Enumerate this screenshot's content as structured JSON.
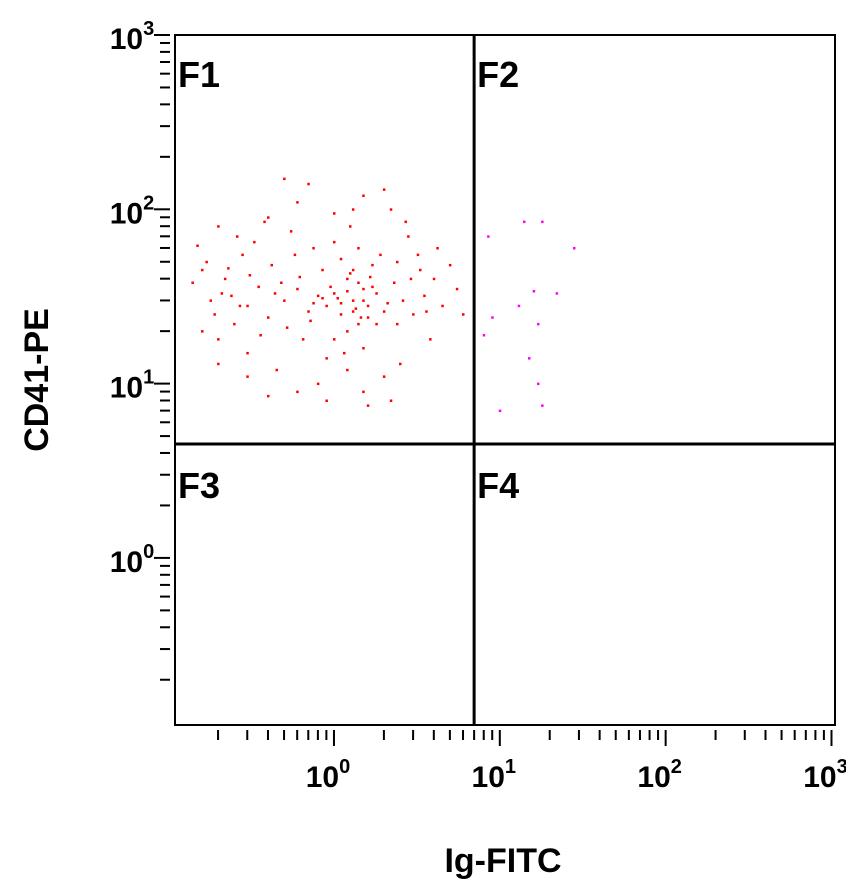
{
  "chart_data": {
    "type": "scatter",
    "xlabel": "Ig-FITC",
    "ylabel": "CD41-PE",
    "x_scale": "log",
    "y_scale": "log",
    "xlim": [
      0.11,
      1050
    ],
    "ylim": [
      0.11,
      1000
    ],
    "x_ticks": [
      {
        "base": "10",
        "exp": "0",
        "value": 1
      },
      {
        "base": "10",
        "exp": "1",
        "value": 10
      },
      {
        "base": "10",
        "exp": "2",
        "value": 100
      },
      {
        "base": "10",
        "exp": "3",
        "value": 1000
      }
    ],
    "y_ticks": [
      {
        "base": "10",
        "exp": "0",
        "value": 1
      },
      {
        "base": "10",
        "exp": "1",
        "value": 10
      },
      {
        "base": "10",
        "exp": "2",
        "value": 100
      },
      {
        "base": "10",
        "exp": "3",
        "value": 1000
      }
    ],
    "quadrant_gates": {
      "x": 7.0,
      "y": 4.5
    },
    "quadrants": [
      "F1",
      "F2",
      "F3",
      "F4"
    ],
    "grid": false,
    "series": [
      {
        "color": "#ff0000",
        "points": [
          [
            1.3,
            30
          ],
          [
            1.1,
            25
          ],
          [
            1.5,
            35
          ],
          [
            0.9,
            28
          ],
          [
            1.2,
            40
          ],
          [
            1.4,
            22
          ],
          [
            0.8,
            32
          ],
          [
            1.6,
            28
          ],
          [
            1.0,
            18
          ],
          [
            1.3,
            45
          ],
          [
            0.7,
            26
          ],
          [
            1.8,
            33
          ],
          [
            1.2,
            20
          ],
          [
            0.6,
            35
          ],
          [
            2.0,
            26
          ],
          [
            1.1,
            52
          ],
          [
            1.5,
            16
          ],
          [
            0.5,
            30
          ],
          [
            2.3,
            38
          ],
          [
            1.4,
            60
          ],
          [
            0.4,
            24
          ],
          [
            2.6,
            30
          ],
          [
            0.9,
            14
          ],
          [
            1.7,
            48
          ],
          [
            0.35,
            36
          ],
          [
            3.0,
            25
          ],
          [
            1.0,
            65
          ],
          [
            0.3,
            28
          ],
          [
            3.5,
            32
          ],
          [
            0.25,
            22
          ],
          [
            0.22,
            40
          ],
          [
            0.18,
            30
          ],
          [
            0.16,
            45
          ],
          [
            0.2,
            18
          ],
          [
            0.28,
            55
          ],
          [
            0.45,
            12
          ],
          [
            1.2,
            12
          ],
          [
            0.8,
            10
          ],
          [
            2.0,
            11
          ],
          [
            0.6,
            9
          ],
          [
            1.5,
            9
          ],
          [
            2.5,
            13
          ],
          [
            0.3,
            15
          ],
          [
            0.14,
            38
          ],
          [
            0.15,
            62
          ],
          [
            0.2,
            80
          ],
          [
            0.4,
            90
          ],
          [
            0.6,
            110
          ],
          [
            1.0,
            95
          ],
          [
            1.5,
            120
          ],
          [
            2.2,
            100
          ],
          [
            2.8,
            70
          ],
          [
            3.2,
            55
          ],
          [
            4.0,
            40
          ],
          [
            4.5,
            28
          ],
          [
            5.5,
            35
          ],
          [
            6.0,
            25
          ],
          [
            3.8,
            18
          ],
          [
            0.55,
            75
          ],
          [
            0.75,
            60
          ],
          [
            1.9,
            55
          ],
          [
            2.4,
            50
          ],
          [
            0.85,
            45
          ],
          [
            0.65,
            18
          ],
          [
            0.42,
            48
          ],
          [
            0.33,
            65
          ],
          [
            1.25,
            80
          ],
          [
            1.8,
            22
          ],
          [
            0.95,
            36
          ],
          [
            1.35,
            27
          ],
          [
            1.05,
            31
          ],
          [
            1.45,
            24
          ],
          [
            0.75,
            29
          ],
          [
            1.65,
            41
          ],
          [
            2.1,
            29
          ],
          [
            0.52,
            21
          ],
          [
            1.15,
            15
          ],
          [
            0.24,
            32
          ],
          [
            0.19,
            25
          ],
          [
            0.17,
            50
          ],
          [
            0.26,
            70
          ],
          [
            0.38,
            85
          ],
          [
            0.7,
            140
          ],
          [
            0.5,
            150
          ],
          [
            1.3,
            100
          ],
          [
            2.0,
            130
          ],
          [
            2.7,
            85
          ],
          [
            3.3,
            45
          ],
          [
            4.2,
            60
          ],
          [
            5.0,
            48
          ],
          [
            0.9,
            8
          ],
          [
            1.6,
            7.5
          ],
          [
            2.2,
            8
          ],
          [
            0.4,
            8.5
          ],
          [
            0.3,
            11
          ],
          [
            0.2,
            13
          ],
          [
            0.16,
            20
          ],
          [
            0.21,
            33
          ],
          [
            0.31,
            42
          ],
          [
            0.36,
            19
          ],
          [
            1.2,
            34
          ],
          [
            1.4,
            38
          ],
          [
            1.1,
            29
          ],
          [
            1.0,
            33
          ],
          [
            1.3,
            26
          ],
          [
            1.5,
            30
          ],
          [
            0.85,
            31
          ],
          [
            1.7,
            36
          ],
          [
            1.25,
            43
          ],
          [
            1.6,
            24
          ],
          [
            2.9,
            40
          ],
          [
            3.6,
            26
          ],
          [
            2.4,
            22
          ],
          [
            0.48,
            38
          ],
          [
            0.62,
            41
          ],
          [
            0.72,
            23
          ],
          [
            0.58,
            55
          ],
          [
            0.44,
            33
          ],
          [
            0.27,
            28
          ],
          [
            0.23,
            46
          ]
        ]
      },
      {
        "color": "#ff00ff",
        "points": [
          [
            8.5,
            70
          ],
          [
            14,
            85
          ],
          [
            18,
            85
          ],
          [
            28,
            60
          ],
          [
            22,
            33
          ],
          [
            16,
            34
          ],
          [
            13,
            28
          ],
          [
            9,
            24
          ],
          [
            15,
            14
          ],
          [
            17,
            10
          ],
          [
            10,
            7
          ],
          [
            18,
            7.5
          ],
          [
            17,
            22
          ],
          [
            8,
            19
          ]
        ]
      }
    ]
  }
}
